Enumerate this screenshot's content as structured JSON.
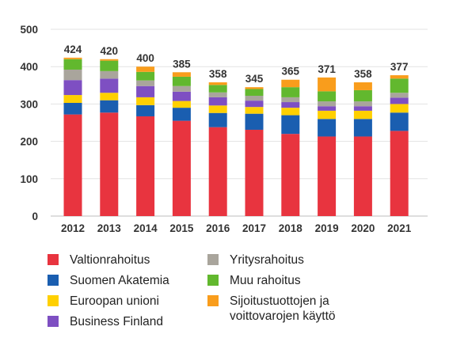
{
  "chart_data": {
    "type": "bar",
    "stacked": true,
    "categories": [
      "2012",
      "2013",
      "2014",
      "2015",
      "2016",
      "2017",
      "2018",
      "2019",
      "2020",
      "2021"
    ],
    "totals": [
      424,
      420,
      400,
      385,
      358,
      345,
      365,
      371,
      358,
      377
    ],
    "ylim": [
      0,
      500
    ],
    "yticks": [
      0,
      100,
      200,
      300,
      400,
      500
    ],
    "grid": true,
    "legend_position": "bottom",
    "series": [
      {
        "name": "Valtionrahoitus",
        "color": "#e8343f",
        "values": [
          272,
          277,
          267,
          255,
          238,
          231,
          220,
          213,
          213,
          228
        ]
      },
      {
        "name": "Suomen Akatemia",
        "color": "#1a5eb0",
        "values": [
          31,
          33,
          30,
          35,
          38,
          43,
          50,
          47,
          47,
          49
        ]
      },
      {
        "name": "Euroopan unioni",
        "color": "#ffd000",
        "values": [
          21,
          20,
          21,
          18,
          20,
          18,
          20,
          22,
          22,
          23
        ]
      },
      {
        "name": "Business Finland",
        "color": "#7e4fc2",
        "values": [
          40,
          38,
          30,
          25,
          22,
          17,
          15,
          12,
          12,
          17
        ]
      },
      {
        "name": "Yritysrahoitus",
        "color": "#a9a59c",
        "values": [
          28,
          20,
          15,
          15,
          13,
          13,
          13,
          13,
          13,
          13
        ]
      },
      {
        "name": "Muu rahoitus",
        "color": "#62b82e",
        "values": [
          28,
          28,
          23,
          25,
          20,
          18,
          27,
          27,
          30,
          38
        ]
      },
      {
        "name": "Sijoitustuottojen ja voittovarojen käyttö",
        "color": "#f99d1c",
        "values": [
          4,
          4,
          14,
          12,
          7,
          5,
          20,
          37,
          21,
          9
        ]
      }
    ]
  }
}
